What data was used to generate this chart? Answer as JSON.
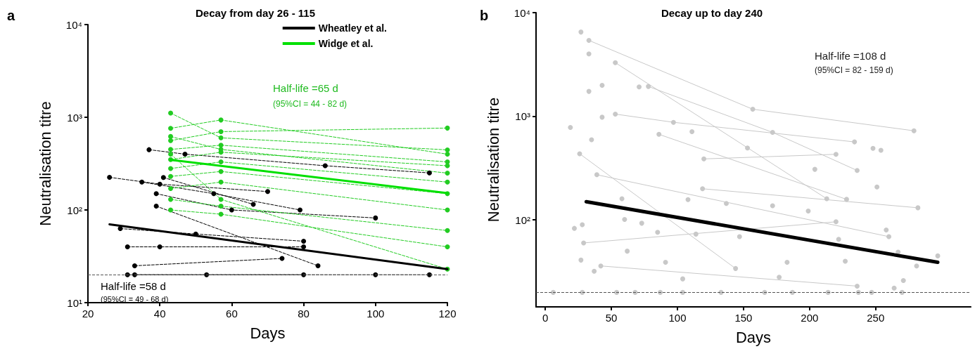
{
  "chart_data": [
    {
      "type": "line",
      "title": "Decay from day 26 - 115",
      "xlabel": "Days",
      "ylabel": "Neutralisation titre",
      "xlim": [
        20,
        120
      ],
      "xticks": [
        20,
        40,
        60,
        80,
        100,
        120
      ],
      "ylim": [
        10,
        10000
      ],
      "yticks": [
        {
          "value": 10,
          "label": "10¹"
        },
        {
          "value": 100,
          "label": "10²"
        },
        {
          "value": 1000,
          "label": "10³"
        },
        {
          "value": 10000,
          "label": "10⁴"
        }
      ],
      "log": "y",
      "legend": "top right",
      "marker": "circle",
      "line_style": "dashed",
      "annotations": [
        "a",
        "Half-life =65 d",
        "(95%CI = 44 - 82 d)",
        "Half-life =58 d",
        "(95%CI = 49 - 68 d)"
      ],
      "ref_lines": [
        {
          "axis": "y",
          "value": 20,
          "line_style": "dashed",
          "color": "#555555"
        }
      ],
      "series": [
        {
          "color": "#000000",
          "x": [
            37,
            47,
            86,
            115
          ],
          "values": [
            447,
            400,
            300,
            251
          ]
        },
        {
          "color": "#000000",
          "x": [
            26,
            40,
            70
          ],
          "values": [
            225,
            190,
            158
          ]
        },
        {
          "color": "#000000",
          "x": [
            35,
            55,
            79
          ],
          "values": [
            200,
            150,
            100
          ]
        },
        {
          "color": "#000000",
          "x": [
            39,
            60,
            100
          ],
          "values": [
            150,
            100,
            82
          ]
        },
        {
          "color": "#000000",
          "x": [
            29,
            50,
            80
          ],
          "values": [
            63,
            55,
            46
          ]
        },
        {
          "color": "#000000",
          "x": [
            31,
            40,
            80
          ],
          "values": [
            40,
            40,
            40
          ]
        },
        {
          "color": "#000000",
          "x": [
            33,
            74
          ],
          "values": [
            25,
            30
          ]
        },
        {
          "color": "#000000",
          "x": [
            31,
            53,
            80
          ],
          "values": [
            20,
            20,
            20
          ]
        },
        {
          "color": "#000000",
          "x": [
            41,
            66
          ],
          "values": [
            224,
            115
          ]
        },
        {
          "color": "#000000",
          "x": [
            39,
            84
          ],
          "values": [
            110,
            25
          ]
        },
        {
          "color": "#000000",
          "x": [
            33,
            100,
            115
          ],
          "values": [
            20,
            20,
            20
          ]
        },
        {
          "color": "#22cc22",
          "x": [
            43,
            57,
            120
          ],
          "values": [
            1110,
            600,
            445
          ]
        },
        {
          "color": "#22cc22",
          "x": [
            43,
            57,
            120
          ],
          "values": [
            760,
            935,
            400
          ]
        },
        {
          "color": "#22cc22",
          "x": [
            43,
            57,
            120
          ],
          "values": [
            560,
            700,
            765
          ]
        },
        {
          "color": "#22cc22",
          "x": [
            43,
            57,
            120
          ],
          "values": [
            450,
            500,
            330
          ]
        },
        {
          "color": "#22cc22",
          "x": [
            43,
            57,
            120
          ],
          "values": [
            350,
            420,
            300
          ]
        },
        {
          "color": "#22cc22",
          "x": [
            43,
            57,
            120
          ],
          "values": [
            280,
            330,
            200
          ]
        },
        {
          "color": "#22cc22",
          "x": [
            43,
            57,
            120
          ],
          "values": [
            230,
            260,
            150
          ]
        },
        {
          "color": "#22cc22",
          "x": [
            43,
            57,
            120
          ],
          "values": [
            170,
            200,
            100
          ]
        },
        {
          "color": "#22cc22",
          "x": [
            43,
            57,
            120
          ],
          "values": [
            130,
            110,
            60
          ]
        },
        {
          "color": "#22cc22",
          "x": [
            43,
            57,
            120
          ],
          "values": [
            100,
            90,
            40
          ]
        },
        {
          "color": "#22cc22",
          "x": [
            43,
            57,
            120
          ],
          "values": [
            620,
            450,
            250
          ]
        },
        {
          "color": "#22cc22",
          "x": [
            43,
            57,
            120
          ],
          "values": [
            400,
            130,
            23
          ]
        },
        {
          "name": "Wheatley et al.",
          "color": "#000000",
          "x": [
            26,
            120
          ],
          "values": [
            70,
            23
          ],
          "marker": "none",
          "line_style": "solid"
        },
        {
          "name": "Widge et al.",
          "color": "#00e000",
          "x": [
            43,
            120
          ],
          "values": [
            347,
            152
          ],
          "marker": "none",
          "line_style": "solid"
        }
      ]
    },
    {
      "type": "line",
      "title": "Decay up to day 240",
      "xlabel": "Days",
      "ylabel": "Neutralisation titre",
      "xlim": [
        -7,
        322
      ],
      "xticks": [
        0,
        50,
        100,
        150,
        200,
        250
      ],
      "ylim": [
        14.5,
        10000
      ],
      "yticks": [
        {
          "value": 100,
          "label": "10²"
        },
        {
          "value": 1000,
          "label": "10³"
        },
        {
          "value": 10000,
          "label": "10⁴"
        }
      ],
      "log": "y",
      "marker": "circle",
      "line_style": "solid",
      "annotations": [
        "b",
        "Half-life =108 d",
        "(95%CI = 82 - 159 d)"
      ],
      "ref_lines": [
        {
          "axis": "y",
          "value": 20,
          "line_style": "dashed",
          "color": "#555555"
        }
      ],
      "series": [
        {
          "color": "#c8c8c8",
          "x": [
            33,
            157,
            279
          ],
          "values": [
            5400,
            1170,
            725
          ]
        },
        {
          "color": "#c8c8c8",
          "x": [
            53,
            213
          ],
          "values": [
            3290,
            160
          ]
        },
        {
          "color": "#c8c8c8",
          "x": [
            78,
            172,
            236
          ],
          "values": [
            1940,
            700,
            300
          ]
        },
        {
          "color": "#c8c8c8",
          "x": [
            53,
            97,
            234
          ],
          "values": [
            1050,
            875,
            566
          ]
        },
        {
          "color": "#c8c8c8",
          "x": [
            120,
            220
          ],
          "values": [
            388,
            430
          ]
        },
        {
          "color": "#c8c8c8",
          "x": [
            26,
            144
          ],
          "values": [
            435,
            34
          ]
        },
        {
          "color": "#c8c8c8",
          "x": [
            29,
            220
          ],
          "values": [
            60,
            96
          ]
        },
        {
          "color": "#c8c8c8",
          "x": [
            119,
            282
          ],
          "values": [
            200,
            131
          ]
        },
        {
          "color": "#c8c8c8",
          "x": [
            42,
            236
          ],
          "values": [
            36,
            23
          ]
        },
        {
          "color": "#c8c8c8",
          "x": [
            39,
            260
          ],
          "values": [
            273,
            69
          ]
        },
        {
          "color": "#c8c8c8",
          "x": [
            86,
            228
          ],
          "values": [
            670,
            158
          ]
        },
        {
          "type": "scatter",
          "color": "#c8c8c8",
          "x": [
            27,
            33,
            33,
            43,
            19,
            43,
            35,
            71,
            111,
            153,
            248,
            254,
            204,
            251,
            22,
            28,
            27,
            37,
            58,
            60,
            62,
            73,
            85,
            91,
            104,
            108,
            114,
            137,
            147,
            172,
            183,
            199,
            222,
            258,
            267,
            271,
            264,
            281,
            297,
            227,
            177,
            6,
            28,
            54,
            68,
            87,
            104,
            133,
            166,
            187,
            214,
            237,
            247,
            270
          ],
          "values": [
            6500,
            4000,
            1740,
            1990,
            780,
            980,
            594,
            1920,
            710,
            494,
            490,
            470,
            308,
            208,
            83,
            90,
            41,
            32,
            160,
            101,
            50,
            93,
            76,
            39,
            27,
            157,
            73,
            144,
            69,
            137,
            39,
            122,
            65,
            80,
            49,
            26,
            22,
            36,
            45,
            40,
            28,
            20,
            20,
            20,
            20,
            20,
            20,
            20,
            20,
            20,
            20,
            20,
            20,
            20
          ]
        },
        {
          "color": "#000000",
          "x": [
            31,
            297
          ],
          "values": [
            150,
            39
          ],
          "marker": "none"
        }
      ]
    }
  ]
}
